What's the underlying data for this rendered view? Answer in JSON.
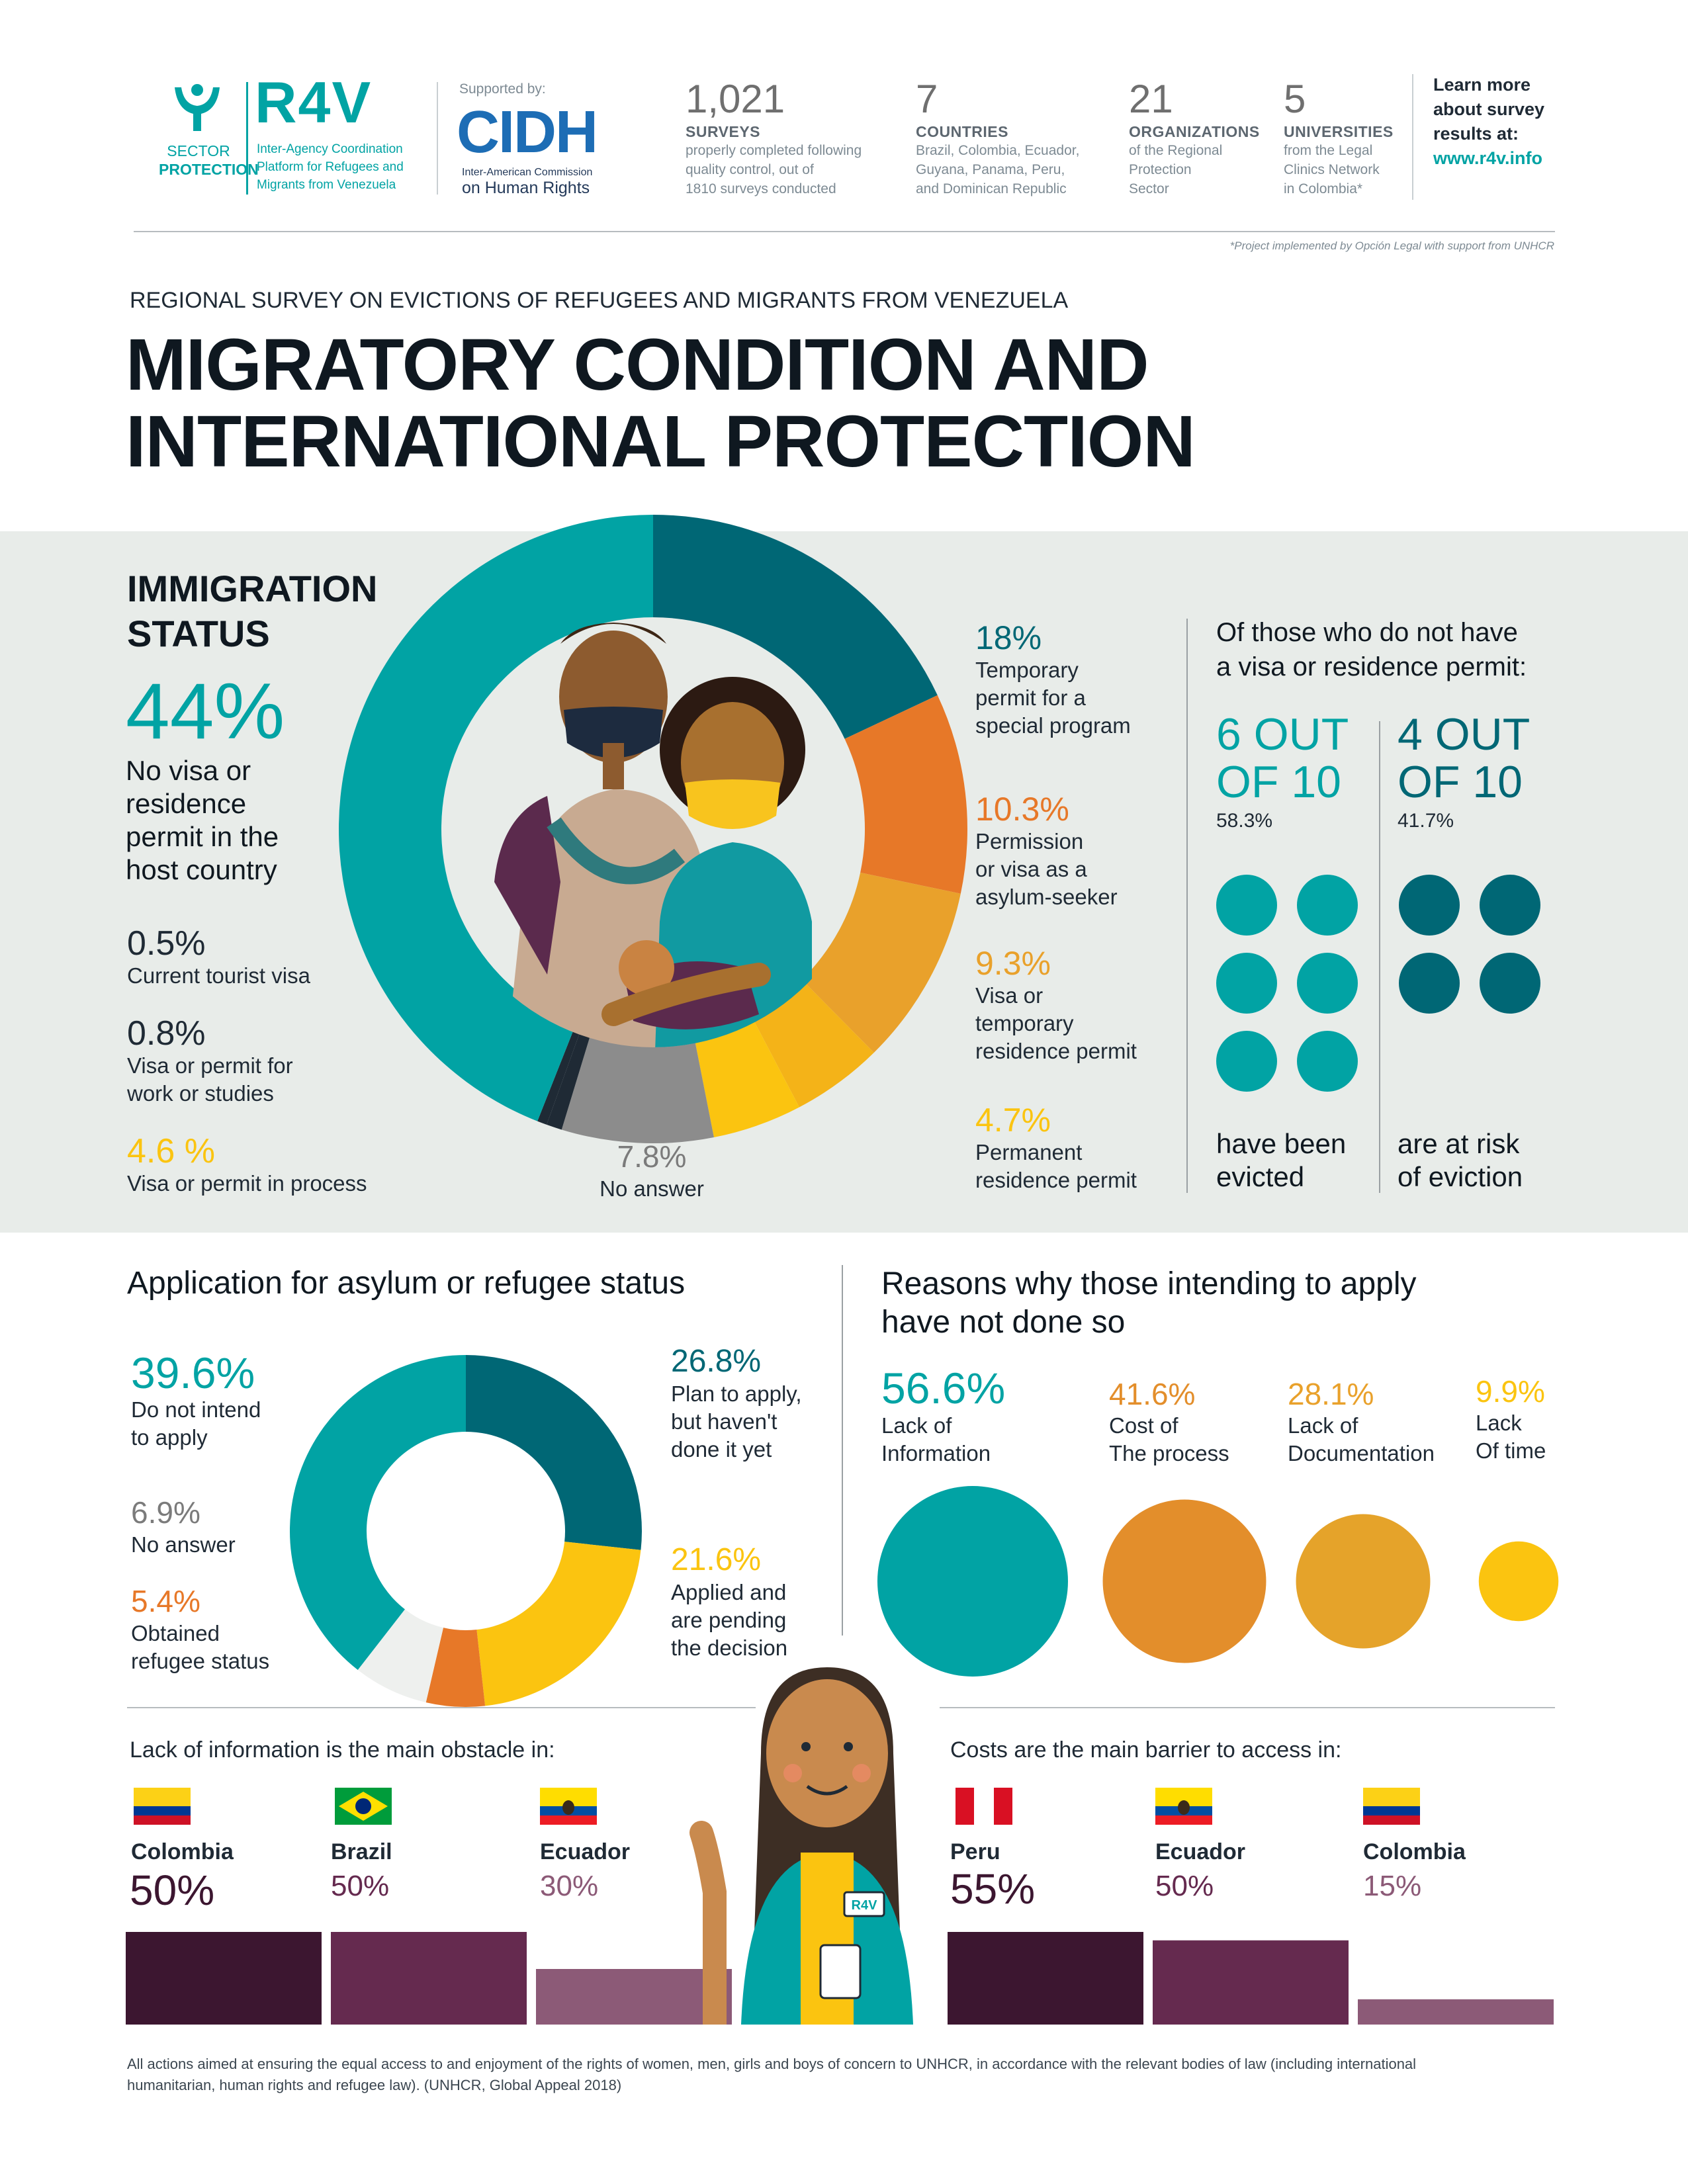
{
  "header": {
    "sector": {
      "line1": "SECTOR",
      "line2": "PROTECTION"
    },
    "r4v": {
      "logo": "R4V",
      "line1": "Inter-Agency Coordination",
      "line2": "Platform for Refugees and",
      "line3": "Migrants from Venezuela"
    },
    "supported_by": "Supported by:",
    "cidh": {
      "logo": "CIDH",
      "line1": "Inter-American Commission",
      "line2": "on Human Rights"
    },
    "stats": [
      {
        "number": "1,021",
        "caption": "SURVEYS",
        "desc": [
          "properly completed following",
          "quality control, out of",
          "1810 surveys conducted"
        ]
      },
      {
        "number": "7",
        "caption": "COUNTRIES",
        "desc": [
          "Brazil, Colombia, Ecuador,",
          "Guyana, Panama, Peru,",
          "and Dominican Republic"
        ]
      },
      {
        "number": "21",
        "caption": "ORGANIZATIONS",
        "desc": [
          "of the Regional",
          "Protection",
          "Sector"
        ]
      },
      {
        "number": "5",
        "caption": "UNIVERSITIES",
        "desc": [
          "from the Legal",
          "Clinics Network",
          "in Colombia*"
        ]
      }
    ],
    "learn_more": [
      "Learn more",
      "about survey",
      "results at:"
    ],
    "url": "www.r4v.info",
    "footnote": "*Project implemented by Opción Legal with support from UNHCR"
  },
  "title": {
    "kicker": "REGIONAL SURVEY ON EVICTIONS OF REFUGEES AND MIGRANTS FROM VENEZUELA",
    "line1": "MIGRATORY CONDITION AND",
    "line2": "INTERNATIONAL PROTECTION"
  },
  "immigration": {
    "heading1": "IMMIGRATION",
    "heading2": "STATUS",
    "side_title": [
      "Of those who do not have",
      "a visa or residence permit:"
    ],
    "evicted": {
      "headline1": "6 OUT",
      "headline2": "OF 10",
      "pct": "58.3%",
      "caption": [
        "have been",
        "evicted"
      ],
      "count": 6
    },
    "at_risk": {
      "headline1": "4 OUT",
      "headline2": "OF 10",
      "pct": "41.7%",
      "caption": [
        "are at risk",
        "of eviction"
      ],
      "count": 4
    }
  },
  "asylum": {
    "heading": "Application for asylum or refugee status"
  },
  "reasons": {
    "heading": [
      "Reasons why those intending to apply",
      "have not done so"
    ]
  },
  "obstacles": {
    "info_title": "Lack of information is the main obstacle in:",
    "cost_title": "Costs are the main barrier to access in:"
  },
  "footer": [
    "All actions aimed at ensuring the equal access to and enjoyment of the rights of women, men, girls and boys of concern to UNHCR, in accordance with the relevant bodies of law (including international",
    "humanitarian, human rights and refugee law). (UNHCR, Global Appeal 2018)"
  ],
  "badge": "R4V",
  "colors": {
    "teal": "#01a3a4",
    "teal_dark": "#006775",
    "orange": "#e77828",
    "gold": "#e9a12b",
    "yellow": "#fbc410",
    "grey": "#8c8c8c",
    "plum_dark": "#3c1630",
    "plum": "#652a4f",
    "plum_light": "#8c5a77"
  },
  "chart_data": [
    {
      "type": "pie",
      "name": "immigration-status-donut",
      "slices": [
        {
          "pct": "44%",
          "value": 44,
          "label": [
            "No visa or",
            "residence",
            "permit in the",
            "host country"
          ],
          "color": "#01a3a4"
        },
        {
          "pct": "18%",
          "value": 18,
          "label": [
            "Temporary",
            "permit for a",
            "special program"
          ],
          "color": "#006775"
        },
        {
          "pct": "10.3%",
          "value": 10.3,
          "label": [
            "Permission",
            "or visa as a",
            "asylum-seeker"
          ],
          "color": "#e77828"
        },
        {
          "pct": "9.3%",
          "value": 9.3,
          "label": [
            "Visa or",
            "temporary",
            "residence permit"
          ],
          "color": "#e9a12b"
        },
        {
          "pct": "4.7%",
          "value": 4.7,
          "label": [
            "Permanent",
            "residence permit"
          ],
          "color": "#f4b318"
        },
        {
          "pct": "4.6 %",
          "value": 4.6,
          "label": [
            "Visa or permit in process"
          ],
          "color": "#fbc410"
        },
        {
          "pct": "0.8%",
          "value": 0.8,
          "label": [
            "Visa or permit for",
            "work or studies"
          ],
          "color": "#1f2a35"
        },
        {
          "pct": "0.5%",
          "value": 0.5,
          "label": [
            "Current tourist visa"
          ],
          "color": "#1f2a35"
        },
        {
          "pct": "7.8%",
          "value": 7.8,
          "label": [
            "No answer"
          ],
          "color": "#8c8c8c"
        }
      ]
    },
    {
      "type": "pie",
      "name": "asylum-application-donut",
      "slices": [
        {
          "pct": "26.8%",
          "value": 26.8,
          "label": [
            "Plan to apply,",
            "but haven't",
            "done it yet"
          ],
          "color": "#006775"
        },
        {
          "pct": "21.6%",
          "value": 21.6,
          "label": [
            "Applied and",
            "are pending",
            "the decision"
          ],
          "color": "#fbc410"
        },
        {
          "pct": "5.4%",
          "value": 5.4,
          "label": [
            "Obtained",
            "refugee status"
          ],
          "color": "#e77828"
        },
        {
          "pct": "6.9%",
          "value": 6.9,
          "label": [
            "No answer"
          ],
          "color": "#eef0ee"
        },
        {
          "pct": "39.6%",
          "value": 39.6,
          "label": [
            "Do not intend",
            "to apply"
          ],
          "color": "#01a3a4"
        }
      ]
    },
    {
      "type": "scatter",
      "name": "reasons-bubbles",
      "items": [
        {
          "pct": "56.6%",
          "value": 56.6,
          "label": [
            "Lack of",
            "Information"
          ],
          "color": "#01a3a4"
        },
        {
          "pct": "41.6%",
          "value": 41.6,
          "label": [
            "Cost of",
            "The process"
          ],
          "color": "#e38e2b"
        },
        {
          "pct": "28.1%",
          "value": 28.1,
          "label": [
            "Lack of",
            "Documentation"
          ],
          "color": "#e5a32a"
        },
        {
          "pct": "9.9%",
          "value": 9.9,
          "label": [
            "Lack",
            "Of time"
          ],
          "color": "#fbc410"
        }
      ]
    },
    {
      "type": "bar",
      "name": "info-obstacle-bars",
      "categories": [
        "Colombia",
        "Brazil",
        "Ecuador"
      ],
      "labels": [
        "50%",
        "50%",
        "30%"
      ],
      "values": [
        50,
        50,
        30
      ],
      "ylim": [
        0,
        50
      ]
    },
    {
      "type": "bar",
      "name": "cost-barrier-bars",
      "categories": [
        "Peru",
        "Ecuador",
        "Colombia"
      ],
      "labels": [
        "55%",
        "50%",
        "15%"
      ],
      "values": [
        55,
        50,
        15
      ],
      "ylim": [
        0,
        55
      ]
    }
  ]
}
